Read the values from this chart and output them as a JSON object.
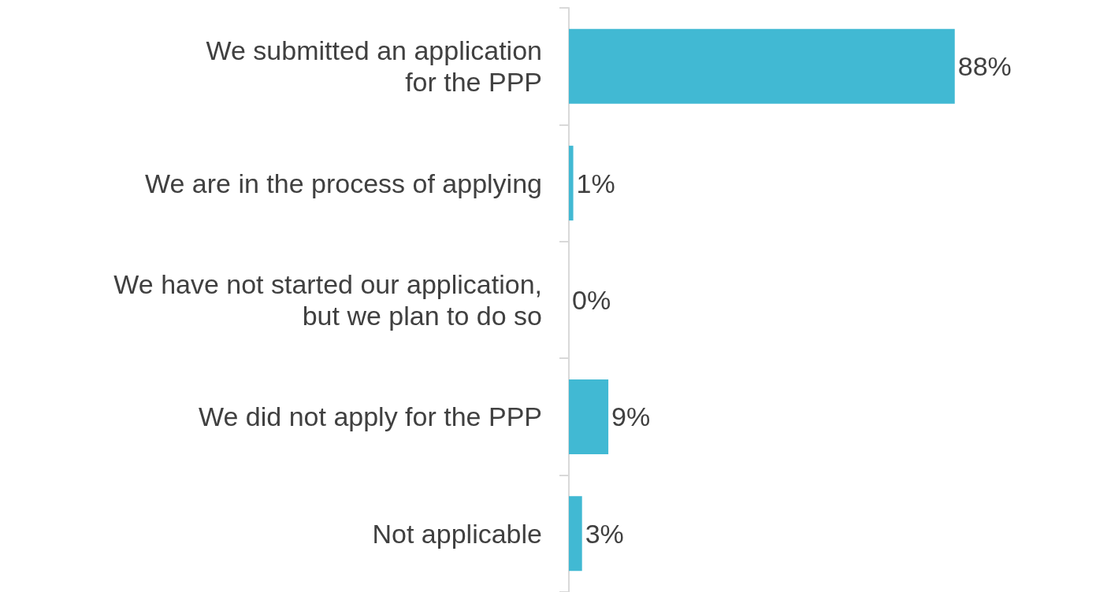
{
  "chart_data": {
    "type": "bar",
    "orientation": "horizontal",
    "categories": [
      "We submitted an application\nfor the PPP",
      "We are in the process of applying",
      "We have not started our application,\nbut we plan to do so",
      "We did not apply for the PPP",
      "Not applicable"
    ],
    "values": [
      88,
      1,
      0,
      9,
      3
    ],
    "value_labels": [
      "88%",
      "1%",
      "0%",
      "9%",
      "3%"
    ],
    "color": "#41b9d3"
  }
}
